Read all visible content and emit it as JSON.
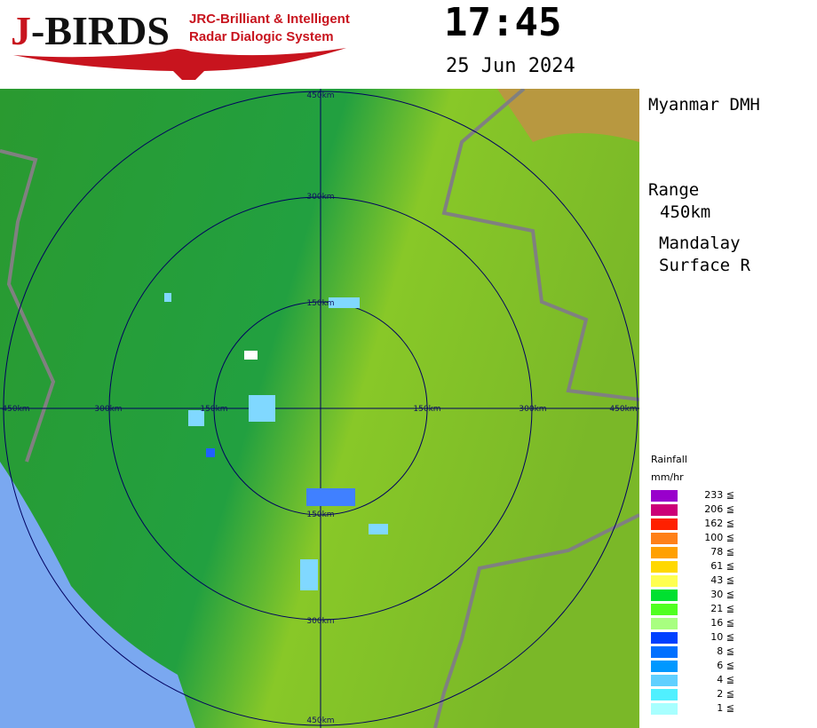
{
  "logo": {
    "main_j": "J",
    "main_rest": "-BIRDS",
    "line1": "JRC-Brilliant & Intelligent",
    "line2": "Radar Dialogic System"
  },
  "header": {
    "time": "17:45",
    "date": "25 Jun 2024"
  },
  "info": {
    "agency": "Myanmar DMH",
    "range_label": "Range",
    "range_value": "450km",
    "station": "Mandalay",
    "product": "Surface R"
  },
  "range_rings": {
    "labels": [
      "150km",
      "300km",
      "450km"
    ]
  },
  "legend": {
    "title": "Rainfall",
    "unit": "mm/hr",
    "items": [
      {
        "value": "233 ≦",
        "color": "#9900cc"
      },
      {
        "value": "206 ≦",
        "color": "#cc0077"
      },
      {
        "value": "162 ≦",
        "color": "#ff2000"
      },
      {
        "value": "100 ≦",
        "color": "#ff8018"
      },
      {
        "value": "78 ≦",
        "color": "#ffa000"
      },
      {
        "value": "61 ≦",
        "color": "#ffd800"
      },
      {
        "value": "43 ≦",
        "color": "#ffff50"
      },
      {
        "value": "30 ≦",
        "color": "#00e030"
      },
      {
        "value": "21 ≦",
        "color": "#50ff20"
      },
      {
        "value": "16 ≦",
        "color": "#a8ff80"
      },
      {
        "value": "10 ≦",
        "color": "#0040ff"
      },
      {
        "value": "8 ≦",
        "color": "#0070ff"
      },
      {
        "value": "6 ≦",
        "color": "#0098ff"
      },
      {
        "value": "4 ≦",
        "color": "#60d0ff"
      },
      {
        "value": "2 ≦",
        "color": "#50f0ff"
      },
      {
        "value": "1 ≦",
        "color": "#a8ffff"
      }
    ]
  }
}
